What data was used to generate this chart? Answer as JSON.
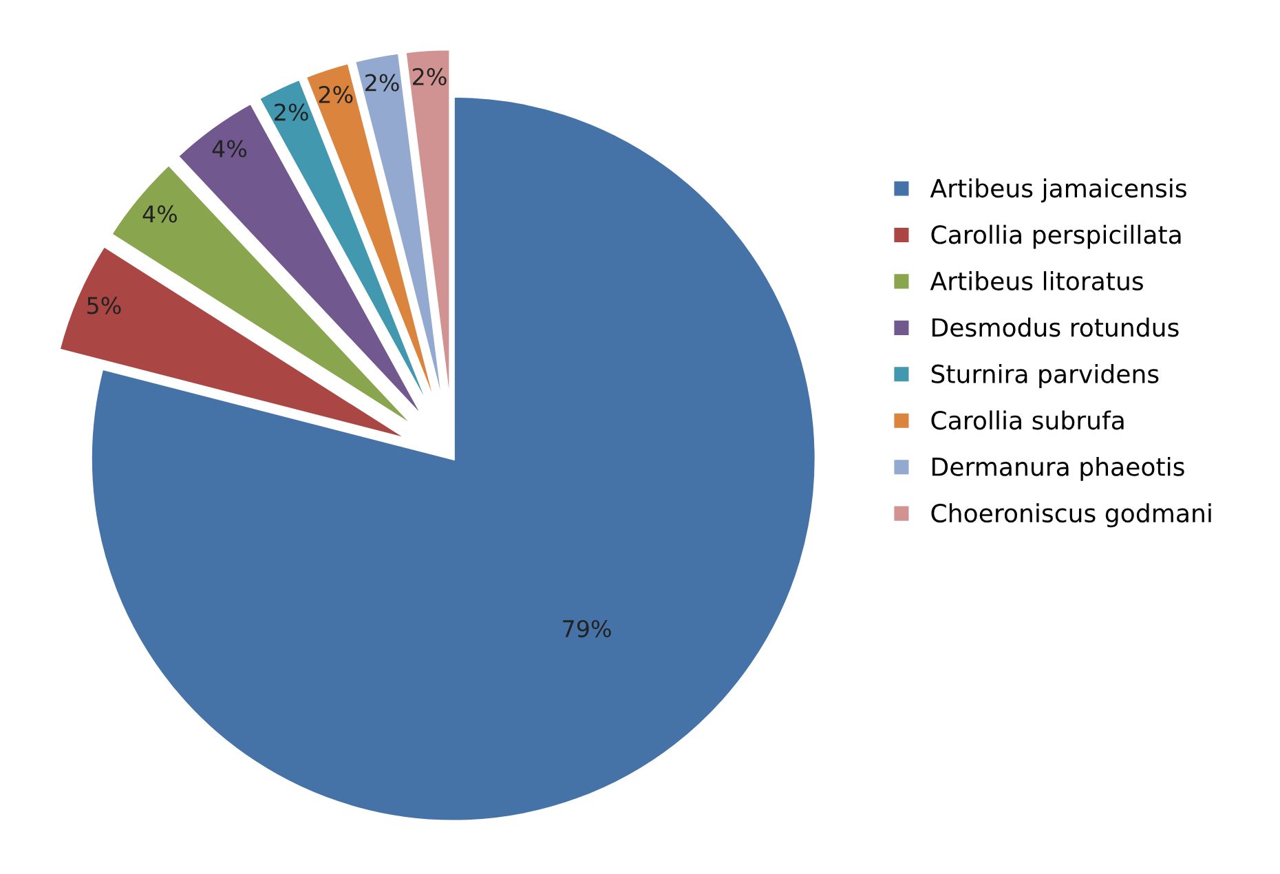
{
  "chart_data": {
    "type": "pie",
    "categories": [
      "Artibeus jamaicensis",
      "Carollia perspicillata",
      "Artibeus litoratus",
      "Desmodus rotundus",
      "Sturnira parvidens",
      "Carollia subrufa",
      "Dermanura phaeotis",
      "Choeroniscus godmani"
    ],
    "values": [
      79,
      5,
      4,
      4,
      2,
      2,
      2,
      2
    ],
    "colors": [
      "#4572a7",
      "#aa4643",
      "#89a54e",
      "#71588f",
      "#4198af",
      "#db843d",
      "#93a9cf",
      "#d19392"
    ],
    "value_labels": [
      "79%",
      "5%",
      "4%",
      "4%",
      "2%",
      "2%",
      "2%",
      "2%"
    ],
    "legend": "right"
  }
}
